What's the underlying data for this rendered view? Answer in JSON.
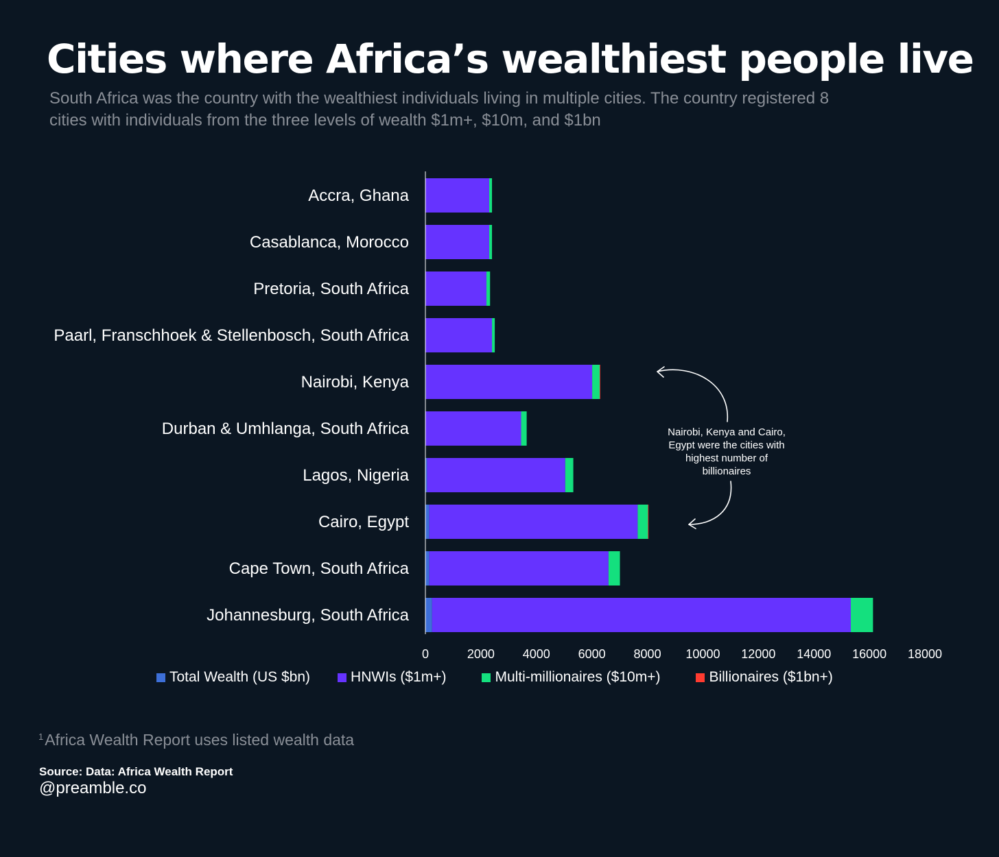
{
  "header": {
    "title": "Cities where Africa’s wealthiest people live",
    "subtitle": "South Africa was the country with the wealthiest individuals living in multiple cities. The country registered 8 cities with individuals from the three levels of wealth $1m+, $10m, and $1bn"
  },
  "chart_data": {
    "type": "bar",
    "orientation": "horizontal",
    "stacked": true,
    "categories": [
      "Accra, Ghana",
      "Casablanca, Morocco",
      "Pretoria, South Africa",
      "Paarl, Franschhoek & Stellenbosch, South Africa",
      "Nairobi, Kenya",
      "Durban & Umhlanga, South Africa",
      "Lagos, Nigeria",
      "Cairo, Egypt",
      "Cape Town, South Africa",
      "Johannesburg, South Africa"
    ],
    "series": [
      {
        "name": "Total Wealth (US $bn)",
        "color": "#3d6fd8",
        "values": [
          10,
          10,
          10,
          10,
          20,
          10,
          60,
          140,
          140,
          240
        ]
      },
      {
        "name": "HNWIs ($1m+)",
        "color": "#6633ff",
        "values": [
          2290,
          2290,
          2190,
          2390,
          5990,
          3440,
          4980,
          7510,
          6460,
          15090
        ]
      },
      {
        "name": "Multi-millionaires ($10m+)",
        "color": "#14e07e",
        "values": [
          100,
          100,
          130,
          100,
          270,
          200,
          290,
          370,
          410,
          800
        ]
      },
      {
        "name": "Billionaires ($1bn+)",
        "color": "#ff3b30",
        "values": [
          0,
          0,
          0,
          0,
          2,
          0,
          0,
          2,
          0,
          0
        ]
      }
    ],
    "xlim": [
      0,
      18000
    ],
    "xticks": [
      "0",
      "2000",
      "4000",
      "6000",
      "8000",
      "10000",
      "12000",
      "14000",
      "16000",
      "18000"
    ],
    "grid": false,
    "legend_position": "bottom",
    "annotation": [
      "Nairobi, Kenya and Cairo,",
      "Egypt were the cities with",
      "highest number of",
      "billionaires"
    ]
  },
  "footer": {
    "footnote_marker": "1",
    "footnote": "Africa Wealth Report uses listed wealth data",
    "source": "Source: Data: Africa Wealth Report",
    "handle": "@preamble.co"
  }
}
